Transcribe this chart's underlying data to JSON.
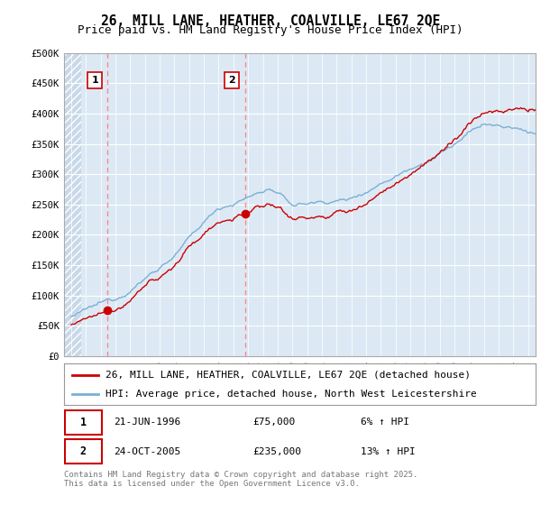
{
  "title": "26, MILL LANE, HEATHER, COALVILLE, LE67 2QE",
  "subtitle": "Price paid vs. HM Land Registry's House Price Index (HPI)",
  "ylim": [
    0,
    500000
  ],
  "yticks": [
    0,
    50000,
    100000,
    150000,
    200000,
    250000,
    300000,
    350000,
    400000,
    450000,
    500000
  ],
  "ytick_labels": [
    "£0",
    "£50K",
    "£100K",
    "£150K",
    "£200K",
    "£250K",
    "£300K",
    "£350K",
    "£400K",
    "£450K",
    "£500K"
  ],
  "xlim_start": 1993.5,
  "xlim_end": 2025.5,
  "background_color": "#ffffff",
  "plot_bg_color": "#dce9f5",
  "hatch_bg_color": "#c8d8e8",
  "grid_color": "#ffffff",
  "line_color_red": "#cc0000",
  "line_color_blue": "#7bafd4",
  "marker_color": "#cc0000",
  "vline_color": "#ff8888",
  "legend_label_red": "26, MILL LANE, HEATHER, COALVILLE, LE67 2QE (detached house)",
  "legend_label_blue": "HPI: Average price, detached house, North West Leicestershire",
  "transactions": [
    {
      "label": "1",
      "date": "21-JUN-1996",
      "price": 75000,
      "pct": "6%",
      "dir": "↑",
      "year": 1996.47
    },
    {
      "label": "2",
      "date": "24-OCT-2005",
      "price": 235000,
      "pct": "13%",
      "dir": "↑",
      "year": 2005.81
    }
  ],
  "footer": "Contains HM Land Registry data © Crown copyright and database right 2025.\nThis data is licensed under the Open Government Licence v3.0.",
  "title_fontsize": 10.5,
  "subtitle_fontsize": 9,
  "tick_fontsize": 7.5,
  "legend_fontsize": 8
}
